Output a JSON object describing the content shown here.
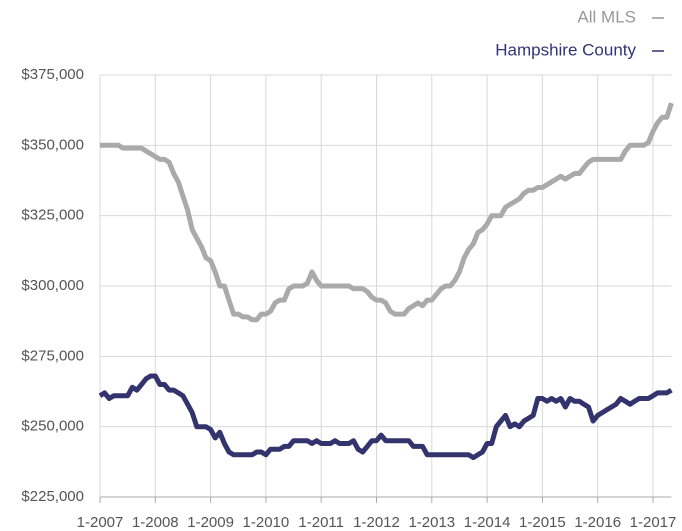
{
  "chart_data": {
    "type": "line",
    "categories": [
      "1-2007",
      null,
      null,
      null,
      null,
      null,
      null,
      null,
      null,
      null,
      null,
      null,
      "1-2008",
      null,
      null,
      null,
      null,
      null,
      null,
      null,
      null,
      null,
      null,
      null,
      "1-2009",
      null,
      null,
      null,
      null,
      null,
      null,
      null,
      null,
      null,
      null,
      null,
      "1-2010",
      null,
      null,
      null,
      null,
      null,
      null,
      null,
      null,
      null,
      null,
      null,
      "1-2011",
      null,
      null,
      null,
      null,
      null,
      null,
      null,
      null,
      null,
      null,
      null,
      "1-2012",
      null,
      null,
      null,
      null,
      null,
      null,
      null,
      null,
      null,
      null,
      null,
      "1-2013",
      null,
      null,
      null,
      null,
      null,
      null,
      null,
      null,
      null,
      null,
      null,
      "1-2014",
      null,
      null,
      null,
      null,
      null,
      null,
      null,
      null,
      null,
      null,
      null,
      "1-2015",
      null,
      null,
      null,
      null,
      null,
      null,
      null,
      null,
      null,
      null,
      null,
      "1-2016",
      null,
      null,
      null,
      null,
      null,
      null,
      null,
      null,
      null,
      null,
      null,
      "1-2017",
      null,
      null,
      null,
      null
    ],
    "series": [
      {
        "name": "All MLS",
        "color": "#aaaaaa",
        "values": [
          350000,
          350000,
          350000,
          350000,
          350000,
          349000,
          349000,
          349000,
          349000,
          349000,
          348000,
          347000,
          346000,
          345000,
          345000,
          344000,
          340000,
          337000,
          332000,
          327000,
          320000,
          317000,
          314000,
          310000,
          309000,
          305000,
          300000,
          300000,
          295000,
          290000,
          290000,
          289000,
          289000,
          288000,
          288000,
          290000,
          290000,
          291000,
          294000,
          295000,
          295000,
          299000,
          300000,
          300000,
          300000,
          301000,
          305000,
          302000,
          300000,
          300000,
          300000,
          300000,
          300000,
          300000,
          300000,
          299000,
          299000,
          299000,
          298000,
          296000,
          295000,
          295000,
          294000,
          291000,
          290000,
          290000,
          290000,
          292000,
          293000,
          294000,
          293000,
          295000,
          295000,
          297000,
          299000,
          300000,
          300000,
          302000,
          305000,
          310000,
          313000,
          315000,
          319000,
          320000,
          322000,
          325000,
          325000,
          325000,
          328000,
          329000,
          330000,
          331000,
          333000,
          334000,
          334000,
          335000,
          335000,
          336000,
          337000,
          338000,
          339000,
          338000,
          339000,
          340000,
          340000,
          342000,
          344000,
          345000,
          345000,
          345000,
          345000,
          345000,
          345000,
          345000,
          348000,
          350000,
          350000,
          350000,
          350000,
          351000,
          355000,
          358000,
          360000,
          360000,
          365000
        ]
      },
      {
        "name": "Hampshire County",
        "color": "#33336e",
        "values": [
          261000,
          262000,
          260000,
          261000,
          261000,
          261000,
          261000,
          264000,
          263000,
          265000,
          267000,
          268000,
          268000,
          265000,
          265000,
          263000,
          263000,
          262000,
          261000,
          258000,
          255000,
          250000,
          250000,
          250000,
          249000,
          246000,
          248000,
          244000,
          241000,
          240000,
          240000,
          240000,
          240000,
          240000,
          241000,
          241000,
          240000,
          242000,
          242000,
          242000,
          243000,
          243000,
          245000,
          245000,
          245000,
          245000,
          244000,
          245000,
          244000,
          244000,
          244000,
          245000,
          244000,
          244000,
          244000,
          245000,
          242000,
          241000,
          243000,
          245000,
          245000,
          247000,
          245000,
          245000,
          245000,
          245000,
          245000,
          245000,
          243000,
          243000,
          243000,
          240000,
          240000,
          240000,
          240000,
          240000,
          240000,
          240000,
          240000,
          240000,
          240000,
          239000,
          240000,
          241000,
          244000,
          244000,
          250000,
          252000,
          254000,
          250000,
          251000,
          250000,
          252000,
          253000,
          254000,
          260000,
          260000,
          259000,
          260000,
          259000,
          260000,
          257000,
          260000,
          259000,
          259000,
          258000,
          257000,
          252000,
          254000,
          255000,
          256000,
          257000,
          258000,
          260000,
          259000,
          258000,
          259000,
          260000,
          260000,
          260000,
          261000,
          262000,
          262000,
          262000,
          263000
        ]
      }
    ],
    "ylim": [
      225000,
      375000
    ],
    "yticks": [
      {
        "value": 225000,
        "label": "$225,000"
      },
      {
        "value": 250000,
        "label": "$250,000"
      },
      {
        "value": 275000,
        "label": "$275,000"
      },
      {
        "value": 300000,
        "label": "$300,000"
      },
      {
        "value": 325000,
        "label": "$325,000"
      },
      {
        "value": 350000,
        "label": "$350,000"
      },
      {
        "value": 375000,
        "label": "$375,000"
      }
    ],
    "grid": true
  }
}
